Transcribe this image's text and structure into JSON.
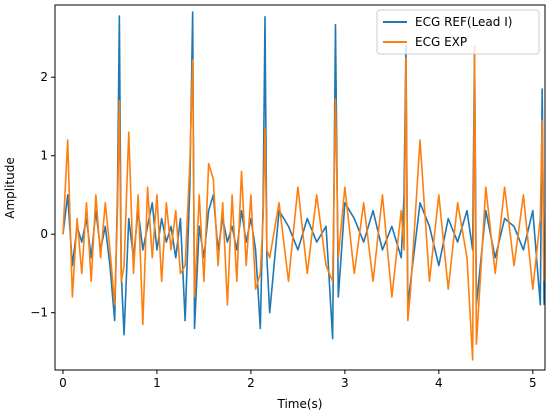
{
  "chart_data": {
    "type": "line",
    "xlabel": "Time(s)",
    "ylabel": "Amplitude",
    "x": [
      0,
      0.05,
      0.1,
      0.15,
      0.2,
      0.25,
      0.3,
      0.35,
      0.4,
      0.45,
      0.5,
      0.55,
      0.58,
      0.6,
      0.62,
      0.65,
      0.7,
      0.75,
      0.8,
      0.85,
      0.9,
      0.95,
      1.0,
      1.05,
      1.1,
      1.15,
      1.2,
      1.25,
      1.3,
      1.35,
      1.38,
      1.4,
      1.45,
      1.5,
      1.55,
      1.6,
      1.65,
      1.7,
      1.75,
      1.8,
      1.85,
      1.9,
      1.95,
      2.0,
      2.05,
      2.1,
      2.13,
      2.15,
      2.17,
      2.2,
      2.3,
      2.4,
      2.5,
      2.6,
      2.7,
      2.8,
      2.87,
      2.9,
      2.93,
      3.0,
      3.1,
      3.2,
      3.3,
      3.4,
      3.5,
      3.6,
      3.63,
      3.65,
      3.67,
      3.7,
      3.8,
      3.9,
      4.0,
      4.1,
      4.2,
      4.3,
      4.36,
      4.38,
      4.4,
      4.5,
      4.6,
      4.7,
      4.8,
      4.9,
      5.0,
      5.08,
      5.1,
      5.12
    ],
    "series": [
      {
        "name": "ECG REF(Lead I)",
        "color": "#1f77b4",
        "values": [
          0,
          0.5,
          -0.4,
          0.1,
          -0.1,
          0.2,
          -0.3,
          0.3,
          -0.2,
          0.1,
          -0.4,
          -1.1,
          0.5,
          2.78,
          -0.5,
          -1.28,
          0.2,
          -0.3,
          0.3,
          -0.2,
          0.1,
          0.4,
          -0.2,
          0.2,
          -0.1,
          0.1,
          -0.3,
          0.2,
          -1.1,
          0.6,
          2.83,
          -1.2,
          0.1,
          -0.3,
          0.3,
          0.5,
          -0.2,
          0.2,
          -0.1,
          0.1,
          -0.2,
          0.3,
          -0.1,
          0.2,
          -0.2,
          -1.2,
          0.4,
          2.77,
          -0.3,
          -1.0,
          0.3,
          0.1,
          -0.2,
          0.2,
          -0.1,
          0.1,
          -1.33,
          2.67,
          -0.8,
          0.4,
          0.2,
          -0.1,
          0.3,
          -0.2,
          0.1,
          -0.3,
          0.5,
          2.4,
          -0.9,
          -0.6,
          0.4,
          0.1,
          -0.4,
          0.2,
          -0.1,
          0.3,
          -0.2,
          2.4,
          -0.9,
          0.3,
          -0.3,
          0.2,
          0.1,
          -0.2,
          0.3,
          -0.9,
          1.85,
          -0.9
        ]
      },
      {
        "name": "ECG EXP",
        "color": "#ff7f0e",
        "values": [
          0,
          1.2,
          -0.8,
          0.2,
          -0.5,
          0.4,
          -0.6,
          0.5,
          -0.3,
          0.4,
          -0.2,
          -0.9,
          0.3,
          1.7,
          -0.6,
          -0.4,
          1.3,
          -0.5,
          0.5,
          -1.15,
          0.6,
          -0.3,
          0.5,
          -0.6,
          0.4,
          -0.2,
          0.3,
          -0.5,
          -0.4,
          0.9,
          2.22,
          -0.8,
          0.5,
          -0.6,
          0.9,
          0.7,
          -0.4,
          0.4,
          -0.9,
          0.5,
          -0.6,
          0.8,
          -0.4,
          0.5,
          -0.7,
          -0.5,
          0.2,
          1.35,
          -0.2,
          -0.3,
          0.4,
          -0.6,
          0.6,
          -0.5,
          0.5,
          -0.4,
          -0.6,
          1.72,
          -0.3,
          0.6,
          -0.5,
          0.4,
          -0.6,
          0.5,
          -0.8,
          0.3,
          -0.2,
          2.25,
          -1.1,
          -0.7,
          1.2,
          -0.6,
          0.5,
          -0.7,
          0.4,
          -0.3,
          -1.6,
          2.4,
          -1.4,
          0.6,
          -0.5,
          0.6,
          -0.4,
          0.5,
          -0.7,
          0.2,
          1.45,
          -0.6
        ]
      }
    ],
    "xlim": [
      -0.085,
      5.13
    ],
    "ylim": [
      -1.73,
      2.92
    ],
    "xticks": [
      0,
      1,
      2,
      3,
      4,
      5
    ],
    "yticks": [
      {
        "value": -1,
        "label": "−1"
      },
      0,
      1,
      2
    ],
    "legend": "upper right",
    "grid": false
  }
}
